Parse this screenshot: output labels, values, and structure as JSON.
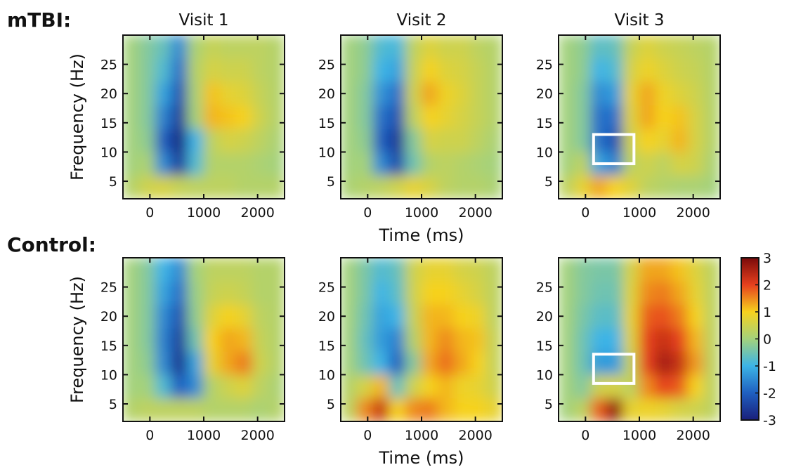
{
  "row_labels": [
    "mTBI:",
    "Control:"
  ],
  "colormap": [
    "#1a1f7a",
    "#1f5fc0",
    "#3cb4e6",
    "#a4d27c",
    "#f6d21e",
    "#e6401e",
    "#7a0a0a"
  ],
  "colorbar": {
    "range": [
      -3,
      3
    ],
    "ticks": [
      -3,
      -2,
      -1,
      0,
      1,
      2,
      3
    ]
  },
  "chart_data": [
    {
      "type": "heatmap",
      "title": "Visit 1",
      "ylabel": "Frequency (Hz)",
      "x": [
        -350,
        -50,
        250,
        550,
        850,
        1150,
        1450,
        1750,
        2050,
        2350
      ],
      "y": [
        4,
        8,
        12,
        16,
        20,
        24,
        28
      ],
      "xlim": [
        -500,
        2500
      ],
      "ylim": [
        2,
        30
      ],
      "xticks": [
        0,
        1000,
        2000
      ],
      "yticks": [
        5,
        10,
        15,
        20,
        25
      ],
      "z": [
        [
          0.2,
          0.5,
          0.6,
          0.4,
          0.3,
          0.3,
          0.3,
          0.2,
          0.2,
          0.2
        ],
        [
          0,
          0.1,
          -1.5,
          -2.5,
          -0.8,
          0.2,
          0.2,
          0.2,
          0.1,
          0
        ],
        [
          0,
          -0.2,
          -2.0,
          -2.9,
          -1.0,
          0.3,
          0.6,
          0.5,
          0.3,
          0.1
        ],
        [
          0,
          -0.3,
          -1.6,
          -2.5,
          0.0,
          1.2,
          1.1,
          1.0,
          0.5,
          0.2
        ],
        [
          0,
          -0.3,
          -1.2,
          -2.2,
          0.1,
          1.1,
          0.8,
          0.7,
          0.4,
          0.2
        ],
        [
          0,
          -0.3,
          -0.8,
          -1.8,
          0.2,
          0.6,
          0.5,
          0.5,
          0.3,
          0.2
        ],
        [
          0,
          -0.3,
          -0.6,
          -1.5,
          0.1,
          0.4,
          0.3,
          0.3,
          0.3,
          0.2
        ]
      ]
    },
    {
      "type": "heatmap",
      "title": "Visit 2",
      "xlabel": "Time (ms)",
      "x": [
        -350,
        -50,
        250,
        550,
        850,
        1150,
        1450,
        1750,
        2050,
        2350
      ],
      "y": [
        4,
        8,
        12,
        16,
        20,
        24,
        28
      ],
      "xlim": [
        -500,
        2500
      ],
      "ylim": [
        2,
        30
      ],
      "xticks": [
        0,
        1000,
        2000
      ],
      "yticks": [
        5,
        10,
        15,
        20,
        25
      ],
      "z": [
        [
          0.1,
          0.2,
          0.3,
          0.5,
          0.8,
          0.6,
          0.3,
          0.2,
          0.2,
          0.1
        ],
        [
          0,
          0,
          -1.5,
          -2.3,
          -0.5,
          0.2,
          0.3,
          0.2,
          0.1,
          0
        ],
        [
          0,
          -0.2,
          -2.0,
          -2.6,
          -0.3,
          0.6,
          0.5,
          0.5,
          0.3,
          0.1
        ],
        [
          0,
          -0.3,
          -1.8,
          -2.2,
          0.3,
          1.0,
          0.8,
          0.6,
          0.4,
          0.2
        ],
        [
          0,
          -0.3,
          -1.4,
          -1.8,
          0.5,
          1.3,
          0.9,
          0.7,
          0.4,
          0.2
        ],
        [
          0,
          -0.2,
          -1.0,
          -1.2,
          0.4,
          1.0,
          0.7,
          0.6,
          0.4,
          0.2
        ],
        [
          0,
          -0.2,
          -0.8,
          -0.9,
          0.3,
          0.7,
          0.5,
          0.5,
          0.3,
          0.2
        ]
      ]
    },
    {
      "type": "heatmap",
      "title": "Visit 3",
      "x": [
        -350,
        -50,
        250,
        550,
        850,
        1150,
        1450,
        1750,
        2050,
        2350
      ],
      "y": [
        4,
        8,
        12,
        16,
        20,
        24,
        28
      ],
      "xlim": [
        -500,
        2500
      ],
      "ylim": [
        2,
        30
      ],
      "xticks": [
        0,
        1000,
        2000
      ],
      "yticks": [
        5,
        10,
        15,
        20,
        25
      ],
      "highlight": {
        "x": [
          150,
          900
        ],
        "y": [
          8,
          13
        ]
      },
      "z": [
        [
          0.3,
          0.8,
          1.3,
          1.0,
          0.7,
          0.3,
          0.2,
          0.1,
          0.1,
          0
        ],
        [
          0,
          0.3,
          -1.2,
          -1.6,
          0.3,
          0.5,
          0.3,
          0.6,
          0.5,
          0.1
        ],
        [
          0,
          -0.3,
          -1.8,
          -2.2,
          0.5,
          1.0,
          0.8,
          1.2,
          0.6,
          0.2
        ],
        [
          0,
          -0.3,
          -1.8,
          -1.8,
          0.7,
          1.3,
          1.0,
          1.1,
          0.6,
          0.2
        ],
        [
          0,
          -0.3,
          -1.5,
          -1.3,
          0.8,
          1.3,
          0.9,
          0.7,
          0.5,
          0.2
        ],
        [
          0,
          -0.2,
          -1.0,
          -0.8,
          0.6,
          0.9,
          0.7,
          0.5,
          0.4,
          0.2
        ],
        [
          0,
          -0.2,
          -0.7,
          -0.6,
          0.4,
          0.7,
          0.5,
          0.4,
          0.3,
          0.2
        ]
      ]
    },
    {
      "type": "heatmap",
      "ylabel": "Frequency (Hz)",
      "x": [
        -350,
        -50,
        250,
        550,
        850,
        1150,
        1450,
        1750,
        2050,
        2350
      ],
      "y": [
        4,
        8,
        12,
        16,
        20,
        24,
        28
      ],
      "xlim": [
        -500,
        2500
      ],
      "ylim": [
        2,
        30
      ],
      "xticks": [
        0,
        1000,
        2000
      ],
      "yticks": [
        5,
        10,
        15,
        20,
        25
      ],
      "z": [
        [
          0.2,
          0.3,
          0.3,
          0.3,
          0.3,
          0.2,
          0.2,
          0.2,
          0.1,
          0.2
        ],
        [
          0,
          0,
          -0.8,
          -2.0,
          -1.5,
          0.2,
          0.5,
          0.7,
          0.3,
          0.1
        ],
        [
          0,
          -0.2,
          -1.5,
          -2.7,
          -1.2,
          0.8,
          1.3,
          1.6,
          0.5,
          0.2
        ],
        [
          0,
          -0.3,
          -1.6,
          -2.5,
          -0.5,
          1.0,
          1.3,
          1.2,
          0.4,
          0.2
        ],
        [
          0,
          -0.3,
          -1.5,
          -2.2,
          -0.2,
          0.7,
          1.0,
          0.8,
          0.3,
          0.2
        ],
        [
          0,
          -0.3,
          -1.2,
          -1.8,
          -0.1,
          0.4,
          0.5,
          0.4,
          0.2,
          0.2
        ],
        [
          0,
          -0.3,
          -1.0,
          -1.5,
          0,
          0.3,
          0.3,
          0.3,
          0.2,
          0.2
        ]
      ]
    },
    {
      "type": "heatmap",
      "xlabel": "Time (ms)",
      "x": [
        -350,
        -50,
        250,
        550,
        850,
        1150,
        1450,
        1750,
        2050,
        2350
      ],
      "y": [
        4,
        8,
        12,
        16,
        20,
        24,
        28
      ],
      "xlim": [
        -500,
        2500
      ],
      "ylim": [
        2,
        30
      ],
      "xticks": [
        0,
        1000,
        2000
      ],
      "yticks": [
        5,
        10,
        15,
        20,
        25
      ],
      "z": [
        [
          0.3,
          1.5,
          2.3,
          1.0,
          1.5,
          1.6,
          1.2,
          1.0,
          1.0,
          0.8
        ],
        [
          0.2,
          0.6,
          1.2,
          -0.6,
          0.5,
          1.0,
          1.2,
          0.9,
          0.8,
          0.5
        ],
        [
          0,
          -0.5,
          -1.0,
          -2.0,
          -0.3,
          1.3,
          1.7,
          1.3,
          1.0,
          0.4
        ],
        [
          0,
          -0.6,
          -1.3,
          -1.6,
          0.2,
          1.2,
          1.5,
          1.2,
          1.1,
          0.4
        ],
        [
          0,
          -0.5,
          -1.2,
          -1.0,
          0.4,
          1.2,
          1.2,
          1.0,
          0.9,
          0.3
        ],
        [
          0,
          -0.4,
          -1.0,
          -0.7,
          0.5,
          1.0,
          1.0,
          0.8,
          0.6,
          0.3
        ],
        [
          0,
          -0.4,
          -0.8,
          -0.6,
          0.5,
          0.8,
          0.8,
          0.6,
          0.5,
          0.3
        ]
      ]
    },
    {
      "type": "heatmap",
      "x": [
        -350,
        -50,
        250,
        550,
        850,
        1150,
        1450,
        1750,
        2050,
        2350
      ],
      "y": [
        4,
        8,
        12,
        16,
        20,
        24,
        28
      ],
      "xlim": [
        -500,
        2500
      ],
      "ylim": [
        2,
        30
      ],
      "xticks": [
        0,
        1000,
        2000
      ],
      "yticks": [
        5,
        10,
        15,
        20,
        25
      ],
      "highlight": {
        "x": [
          150,
          900
        ],
        "y": [
          8.5,
          13.5
        ]
      },
      "z": [
        [
          0,
          0.3,
          1.8,
          2.8,
          0.8,
          0.9,
          0.8,
          0.6,
          0.5,
          0.3
        ],
        [
          0,
          -0.3,
          0.5,
          0.6,
          0.3,
          1.5,
          2.0,
          1.8,
          1.0,
          0.3
        ],
        [
          0,
          -0.5,
          -1.3,
          -1.3,
          0.4,
          2.0,
          2.6,
          2.3,
          1.4,
          0.3
        ],
        [
          0,
          -0.5,
          -1.0,
          -1.0,
          0.7,
          2.0,
          2.3,
          2.0,
          1.2,
          0.3
        ],
        [
          0,
          -0.4,
          -0.7,
          -0.7,
          0.8,
          1.8,
          1.9,
          1.6,
          1.0,
          0.3
        ],
        [
          0,
          -0.3,
          -0.5,
          -0.5,
          0.7,
          1.5,
          1.6,
          1.3,
          0.8,
          0.3
        ],
        [
          0,
          -0.3,
          -0.4,
          -0.4,
          0.6,
          1.3,
          1.3,
          1.1,
          0.7,
          0.3
        ]
      ]
    }
  ]
}
